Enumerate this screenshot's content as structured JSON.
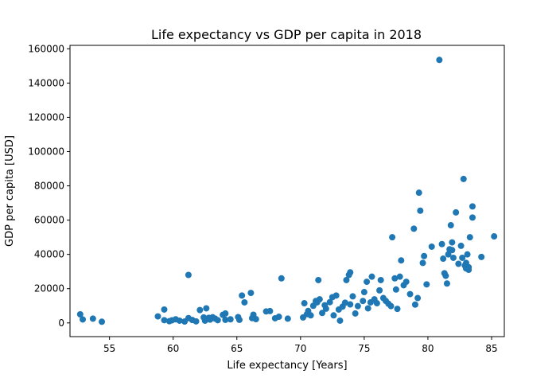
{
  "chart_data": {
    "type": "scatter",
    "title": "Life expectancy vs GDP per capita in 2018",
    "xlabel": "Life expectancy [Years]",
    "ylabel": "GDP per capita [USD]",
    "xlim": [
      51.9,
      86.0
    ],
    "ylim": [
      -8000,
      162000
    ],
    "xticks": [
      55,
      60,
      65,
      70,
      75,
      80,
      85
    ],
    "yticks": [
      0,
      20000,
      40000,
      60000,
      80000,
      100000,
      120000,
      140000,
      160000
    ],
    "grid": false,
    "marker_color": "#1f77b4",
    "points": [
      [
        52.7,
        5000
      ],
      [
        52.9,
        2000
      ],
      [
        53.7,
        2500
      ],
      [
        54.4,
        700
      ],
      [
        58.8,
        3800
      ],
      [
        59.3,
        7800
      ],
      [
        59.3,
        1600
      ],
      [
        59.7,
        1000
      ],
      [
        59.9,
        1500
      ],
      [
        60.2,
        2100
      ],
      [
        60.5,
        1300
      ],
      [
        60.9,
        800
      ],
      [
        61.2,
        2800
      ],
      [
        61.2,
        28000
      ],
      [
        61.5,
        1700
      ],
      [
        61.8,
        900
      ],
      [
        62.1,
        7500
      ],
      [
        62.4,
        3200
      ],
      [
        62.5,
        1300
      ],
      [
        62.6,
        8500
      ],
      [
        62.8,
        3000
      ],
      [
        62.9,
        1900
      ],
      [
        63.1,
        3300
      ],
      [
        63.3,
        2500
      ],
      [
        63.5,
        1600
      ],
      [
        63.9,
        4700
      ],
      [
        64.1,
        5500
      ],
      [
        64.1,
        1800
      ],
      [
        64.5,
        2100
      ],
      [
        65.1,
        3400
      ],
      [
        65.2,
        1800
      ],
      [
        65.4,
        16000
      ],
      [
        65.6,
        12000
      ],
      [
        66.1,
        17500
      ],
      [
        66.2,
        2800
      ],
      [
        66.3,
        4800
      ],
      [
        66.5,
        2200
      ],
      [
        67.3,
        6700
      ],
      [
        67.6,
        6900
      ],
      [
        68.0,
        2700
      ],
      [
        68.3,
        3600
      ],
      [
        68.5,
        26000
      ],
      [
        69.0,
        2500
      ],
      [
        70.2,
        3200
      ],
      [
        70.3,
        11500
      ],
      [
        70.5,
        5100
      ],
      [
        70.6,
        7000
      ],
      [
        70.8,
        4400
      ],
      [
        71.0,
        10000
      ],
      [
        71.2,
        12800
      ],
      [
        71.3,
        12000
      ],
      [
        71.4,
        25000
      ],
      [
        71.5,
        13800
      ],
      [
        71.7,
        5800
      ],
      [
        71.9,
        10300
      ],
      [
        72.0,
        8300
      ],
      [
        72.3,
        12100
      ],
      [
        72.5,
        15000
      ],
      [
        72.6,
        4400
      ],
      [
        72.8,
        16000
      ],
      [
        73.0,
        7800
      ],
      [
        73.1,
        1300
      ],
      [
        73.3,
        9500
      ],
      [
        73.5,
        11800
      ],
      [
        73.6,
        25000
      ],
      [
        73.8,
        28000
      ],
      [
        73.9,
        29500
      ],
      [
        73.9,
        10800
      ],
      [
        74.1,
        15500
      ],
      [
        74.3,
        5500
      ],
      [
        74.5,
        9800
      ],
      [
        74.9,
        12800
      ],
      [
        75.0,
        18000
      ],
      [
        75.2,
        24000
      ],
      [
        75.3,
        8500
      ],
      [
        75.5,
        12000
      ],
      [
        75.6,
        27000
      ],
      [
        75.8,
        13800
      ],
      [
        76.0,
        11500
      ],
      [
        76.2,
        19000
      ],
      [
        76.3,
        25000
      ],
      [
        76.5,
        14500
      ],
      [
        76.7,
        12800
      ],
      [
        76.9,
        11200
      ],
      [
        77.1,
        9800
      ],
      [
        77.2,
        50000
      ],
      [
        77.4,
        26000
      ],
      [
        77.5,
        19500
      ],
      [
        77.6,
        8200
      ],
      [
        77.8,
        27000
      ],
      [
        77.9,
        36500
      ],
      [
        78.1,
        22000
      ],
      [
        78.3,
        24000
      ],
      [
        78.6,
        16800
      ],
      [
        78.9,
        55000
      ],
      [
        79.0,
        10700
      ],
      [
        79.2,
        14500
      ],
      [
        79.3,
        76000
      ],
      [
        79.4,
        65500
      ],
      [
        79.6,
        35000
      ],
      [
        79.7,
        39000
      ],
      [
        79.9,
        22500
      ],
      [
        80.3,
        44500
      ],
      [
        80.9,
        153500
      ],
      [
        81.1,
        46000
      ],
      [
        81.2,
        37500
      ],
      [
        81.3,
        29000
      ],
      [
        81.4,
        27500
      ],
      [
        81.5,
        23000
      ],
      [
        81.6,
        40000
      ],
      [
        81.7,
        43000
      ],
      [
        81.8,
        57000
      ],
      [
        81.9,
        47000
      ],
      [
        82.0,
        38000
      ],
      [
        82.2,
        64500
      ],
      [
        82.4,
        34500
      ],
      [
        82.6,
        45000
      ],
      [
        82.8,
        84000
      ],
      [
        82.9,
        33500
      ],
      [
        83.0,
        31800
      ],
      [
        83.1,
        40000
      ],
      [
        83.2,
        32500
      ],
      [
        83.3,
        50000
      ],
      [
        83.5,
        68000
      ],
      [
        83.5,
        61500
      ],
      [
        84.2,
        38500
      ],
      [
        85.2,
        50500
      ],
      [
        82.7,
        38000
      ],
      [
        83.2,
        31000
      ],
      [
        81.9,
        42500
      ],
      [
        83.0,
        35000
      ]
    ]
  }
}
